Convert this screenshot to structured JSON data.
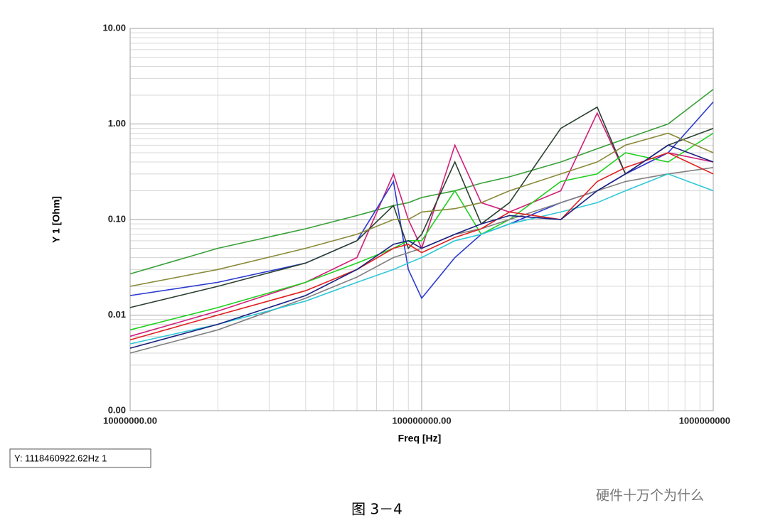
{
  "chart_data": {
    "type": "line",
    "x_label": "Freq [Hz]",
    "y_label": "Y 1 [Ohm]",
    "marker_readout": "Y: 1118460922.62Hz 1",
    "caption": "图 3－4",
    "watermark": "硬件十万个为什么",
    "log_x": true,
    "log_y": true,
    "grid": true,
    "xlim": [
      10000000,
      1000000000
    ],
    "xticks": [
      {
        "value": 10000000,
        "label": "10000000.00"
      },
      {
        "value": 100000000,
        "label": "100000000.00"
      },
      {
        "value": 1000000000,
        "label": "1000000000"
      }
    ],
    "ylim": [
      0.001,
      10
    ],
    "yticks": [
      {
        "value": 0.001,
        "label": "0.00"
      },
      {
        "value": 0.01,
        "label": "0.01"
      },
      {
        "value": 0.1,
        "label": "0.10"
      },
      {
        "value": 1,
        "label": "1.00"
      },
      {
        "value": 10,
        "label": "10.00"
      }
    ],
    "x": [
      10000000,
      20000000,
      40000000,
      60000000,
      80000000,
      90000000,
      100000000,
      130000000,
      160000000,
      200000000,
      300000000,
      400000000,
      500000000,
      700000000,
      1000000000
    ],
    "series": [
      {
        "color": "#3aa03a",
        "values": [
          0.027,
          0.05,
          0.08,
          0.11,
          0.14,
          0.15,
          0.17,
          0.2,
          0.24,
          0.28,
          0.4,
          0.55,
          0.7,
          1.0,
          2.3
        ]
      },
      {
        "color": "#d0207a",
        "values": [
          0.006,
          0.011,
          0.022,
          0.04,
          0.3,
          0.1,
          0.05,
          0.6,
          0.15,
          0.12,
          0.2,
          1.3,
          0.3,
          0.5,
          0.4
        ]
      },
      {
        "color": "#2a3ad0",
        "values": [
          0.016,
          0.022,
          0.035,
          0.06,
          0.25,
          0.03,
          0.015,
          0.04,
          0.07,
          0.09,
          0.15,
          0.2,
          0.3,
          0.5,
          1.7
        ]
      },
      {
        "color": "#2a4030",
        "values": [
          0.012,
          0.02,
          0.035,
          0.06,
          0.14,
          0.05,
          0.07,
          0.4,
          0.09,
          0.15,
          0.9,
          1.5,
          0.3,
          0.6,
          0.9
        ]
      },
      {
        "color": "#20d020",
        "values": [
          0.007,
          0.012,
          0.022,
          0.035,
          0.05,
          0.06,
          0.06,
          0.2,
          0.07,
          0.1,
          0.25,
          0.3,
          0.5,
          0.4,
          0.8
        ]
      },
      {
        "color": "#808080",
        "values": [
          0.004,
          0.007,
          0.015,
          0.025,
          0.04,
          0.045,
          0.05,
          0.07,
          0.08,
          0.1,
          0.15,
          0.2,
          0.25,
          0.3,
          0.35
        ]
      },
      {
        "color": "#30c8d8",
        "values": [
          0.005,
          0.008,
          0.014,
          0.022,
          0.03,
          0.035,
          0.04,
          0.06,
          0.07,
          0.09,
          0.12,
          0.15,
          0.2,
          0.3,
          0.2
        ]
      },
      {
        "color": "#e02020",
        "values": [
          0.0055,
          0.01,
          0.018,
          0.03,
          0.05,
          0.055,
          0.045,
          0.065,
          0.08,
          0.12,
          0.1,
          0.25,
          0.35,
          0.5,
          0.3
        ]
      },
      {
        "color": "#1a2080",
        "values": [
          0.0045,
          0.008,
          0.016,
          0.03,
          0.055,
          0.06,
          0.05,
          0.07,
          0.09,
          0.11,
          0.1,
          0.2,
          0.3,
          0.6,
          0.4
        ]
      },
      {
        "color": "#8a8a3a",
        "values": [
          0.02,
          0.03,
          0.05,
          0.07,
          0.1,
          0.1,
          0.12,
          0.13,
          0.15,
          0.2,
          0.3,
          0.4,
          0.6,
          0.8,
          0.5
        ]
      }
    ]
  }
}
